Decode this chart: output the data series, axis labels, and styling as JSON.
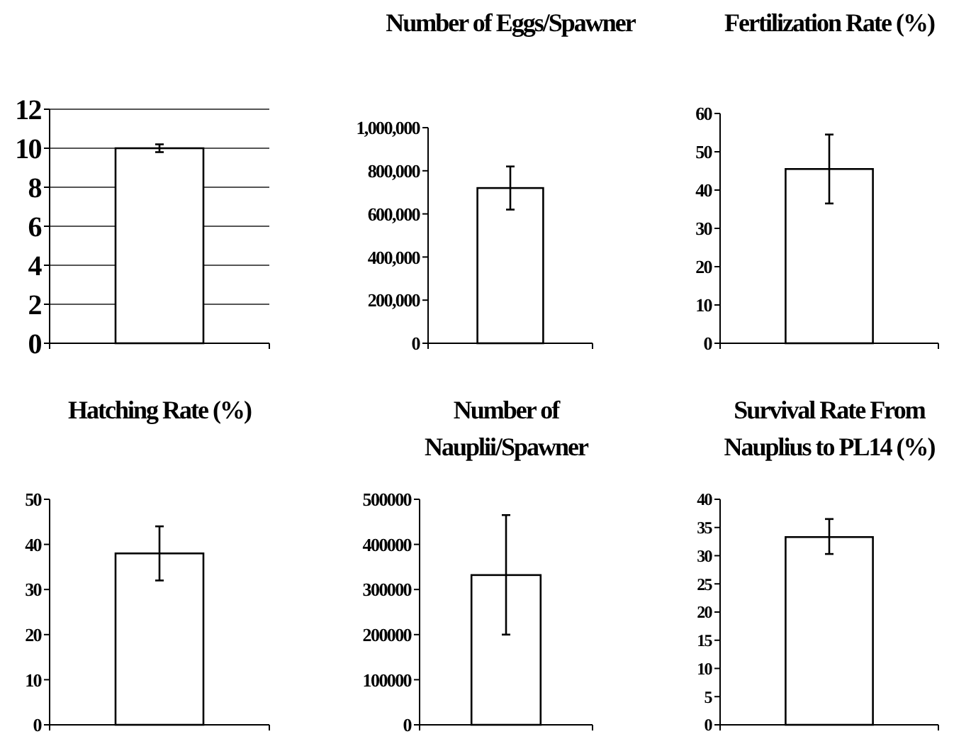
{
  "chart_data": [
    {
      "type": "bar",
      "categories": [
        null
      ],
      "values": [
        10
      ],
      "errors": [
        [
          9.8,
          10.2
        ]
      ],
      "color": "#ffffff",
      "ylim": [
        0,
        12
      ],
      "yticks": [
        0,
        2,
        4,
        6,
        8,
        10,
        12
      ],
      "grid": "y"
    },
    {
      "type": "bar",
      "title": "Number of Eggs/Spawner",
      "categories": [
        null
      ],
      "values": [
        720000
      ],
      "errors": [
        [
          620000,
          820000
        ]
      ],
      "color": "#ffffff",
      "ylim": [
        0,
        1000000
      ],
      "yticks": [
        {
          "value": 0,
          "label": "0"
        },
        {
          "value": 200000,
          "label": "200,000"
        },
        {
          "value": 400000,
          "label": "400,000"
        },
        {
          "value": 600000,
          "label": "600,000"
        },
        {
          "value": 800000,
          "label": "800,000"
        },
        {
          "value": 1000000,
          "label": "1,000,000"
        }
      ]
    },
    {
      "type": "bar",
      "title": "Fertilization Rate (%)",
      "categories": [
        null
      ],
      "values": [
        45.5
      ],
      "errors": [
        [
          36.5,
          54.5
        ]
      ],
      "color": "#ffffff",
      "ylim": [
        0,
        60
      ],
      "yticks": [
        0,
        10,
        20,
        30,
        40,
        50,
        60
      ]
    },
    {
      "type": "bar",
      "title": "Hatching Rate (%)",
      "categories": [
        null
      ],
      "values": [
        38
      ],
      "errors": [
        [
          32,
          44
        ]
      ],
      "color": "#ffffff",
      "ylim": [
        0,
        50
      ],
      "yticks": [
        0,
        10,
        20,
        30,
        40,
        50
      ]
    },
    {
      "type": "bar",
      "title": "Number of Nauplii/Spawner",
      "categories": [
        null
      ],
      "values": [
        332000
      ],
      "errors": [
        [
          200000,
          465000
        ]
      ],
      "color": "#ffffff",
      "ylim": [
        0,
        500000
      ],
      "yticks": [
        0,
        100000,
        200000,
        300000,
        400000,
        500000
      ]
    },
    {
      "type": "bar",
      "title": "Survival Rate From Nauplius to PL14 (%)",
      "categories": [
        null
      ],
      "values": [
        33.3
      ],
      "errors": [
        [
          30.3,
          36.5
        ]
      ],
      "color": "#ffffff",
      "ylim": [
        0,
        40
      ],
      "yticks": [
        0,
        5,
        10,
        15,
        20,
        25,
        30,
        35,
        40
      ]
    }
  ]
}
